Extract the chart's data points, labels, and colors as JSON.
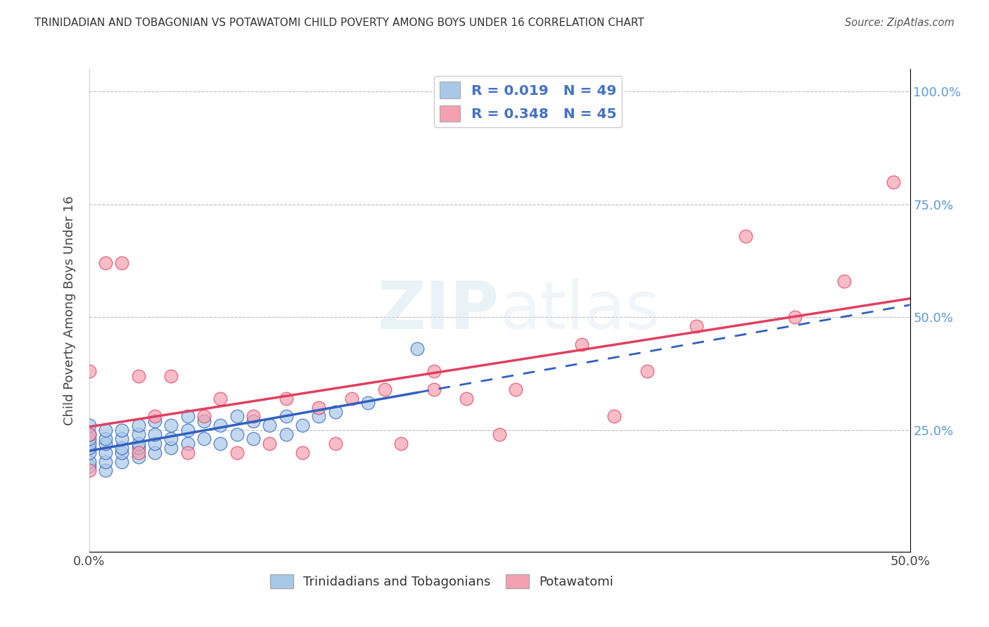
{
  "title": "TRINIDADIAN AND TOBAGONIAN VS POTAWATOMI CHILD POVERTY AMONG BOYS UNDER 16 CORRELATION CHART",
  "source": "Source: ZipAtlas.com",
  "ylabel": "Child Poverty Among Boys Under 16",
  "xlim": [
    0.0,
    0.5
  ],
  "ylim": [
    -0.02,
    1.05
  ],
  "blue_color": "#A8C8E8",
  "pink_color": "#F4A0B0",
  "blue_line_color": "#3060C0",
  "pink_line_color": "#E04060",
  "legend_text_color": "#4472C4",
  "background_color": "#FFFFFF",
  "tri_x": [
    0.0,
    0.0,
    0.0,
    0.0,
    0.0,
    0.0,
    0.0,
    0.0,
    0.01,
    0.01,
    0.01,
    0.01,
    0.01,
    0.01,
    0.02,
    0.02,
    0.02,
    0.02,
    0.02,
    0.03,
    0.03,
    0.03,
    0.03,
    0.03,
    0.04,
    0.04,
    0.04,
    0.04,
    0.05,
    0.05,
    0.05,
    0.06,
    0.06,
    0.06,
    0.07,
    0.07,
    0.08,
    0.08,
    0.09,
    0.09,
    0.1,
    0.1,
    0.11,
    0.12,
    0.12,
    0.13,
    0.14,
    0.15,
    0.17,
    0.2
  ],
  "tri_y": [
    0.17,
    0.18,
    0.2,
    0.21,
    0.22,
    0.23,
    0.24,
    0.26,
    0.16,
    0.18,
    0.2,
    0.22,
    0.23,
    0.25,
    0.18,
    0.2,
    0.21,
    0.23,
    0.25,
    0.19,
    0.21,
    0.22,
    0.24,
    0.26,
    0.2,
    0.22,
    0.24,
    0.27,
    0.21,
    0.23,
    0.26,
    0.22,
    0.25,
    0.28,
    0.23,
    0.27,
    0.22,
    0.26,
    0.24,
    0.28,
    0.23,
    0.27,
    0.26,
    0.24,
    0.28,
    0.26,
    0.28,
    0.29,
    0.31,
    0.43
  ],
  "pot_x": [
    0.0,
    0.0,
    0.0,
    0.01,
    0.02,
    0.03,
    0.03,
    0.04,
    0.05,
    0.06,
    0.07,
    0.08,
    0.09,
    0.1,
    0.11,
    0.12,
    0.13,
    0.14,
    0.15,
    0.16,
    0.18,
    0.19,
    0.21,
    0.21,
    0.23,
    0.25,
    0.26,
    0.3,
    0.32,
    0.34,
    0.37,
    0.4,
    0.43,
    0.46,
    0.49
  ],
  "pot_y": [
    0.16,
    0.24,
    0.38,
    0.62,
    0.62,
    0.2,
    0.37,
    0.28,
    0.37,
    0.2,
    0.28,
    0.32,
    0.2,
    0.28,
    0.22,
    0.32,
    0.2,
    0.3,
    0.22,
    0.32,
    0.34,
    0.22,
    0.34,
    0.38,
    0.32,
    0.24,
    0.34,
    0.44,
    0.28,
    0.38,
    0.48,
    0.68,
    0.5,
    0.58,
    0.8
  ]
}
